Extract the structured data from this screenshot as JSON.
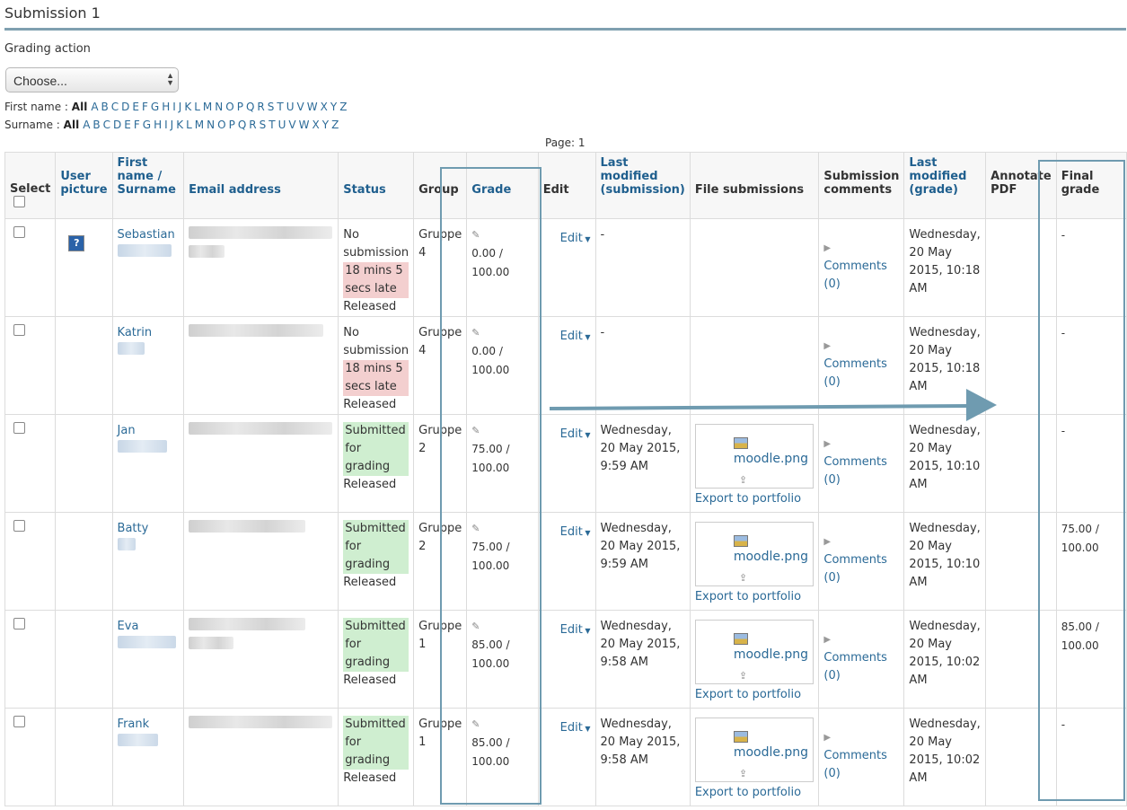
{
  "page": {
    "title": "Submission 1",
    "grading_action_label": "Grading action",
    "grading_action_value": "Choose...",
    "first_name_label": "First name :",
    "surname_label": "Surname :",
    "all_label": "All",
    "letters": [
      "A",
      "B",
      "C",
      "D",
      "E",
      "F",
      "G",
      "H",
      "I",
      "J",
      "K",
      "L",
      "M",
      "N",
      "O",
      "P",
      "Q",
      "R",
      "S",
      "T",
      "U",
      "V",
      "W",
      "X",
      "Y",
      "Z"
    ],
    "page_label": "Page:",
    "page_number": "1"
  },
  "table": {
    "headers": {
      "select": "Select",
      "user_picture": "User picture",
      "name": "First name / Surname",
      "email": "Email address",
      "status": "Status",
      "group": "Group",
      "grade": "Grade",
      "edit": "Edit",
      "last_modified_submission": "Last modified (submission)",
      "file_submissions": "File submissions",
      "submission_comments": "Submission comments",
      "last_modified_grade": "Last modified (grade)",
      "annotate_pdf": "Annotate PDF",
      "final_grade": "Final grade"
    },
    "rows": [
      {
        "first": "Sebastian",
        "status1": "No submission",
        "status_late": "18 mins 5 secs late",
        "status_type": "late",
        "released": "Released",
        "group": "Gruppe 4",
        "grade": "0.00 / 100.00",
        "edit": "Edit",
        "modified_sub": "-",
        "file": "",
        "export": "",
        "comments": "Comments (0)",
        "modified_grade": "Wednesday, 20 May 2015, 10:18 AM",
        "final_grade": "-"
      },
      {
        "first": "Katrin",
        "status1": "No submission",
        "status_late": "18 mins 5 secs late",
        "status_type": "late",
        "released": "Released",
        "group": "Gruppe 4",
        "grade": "0.00 / 100.00",
        "edit": "Edit",
        "modified_sub": "-",
        "file": "",
        "export": "",
        "comments": "Comments (0)",
        "modified_grade": "Wednesday, 20 May 2015, 10:18 AM",
        "final_grade": "-"
      },
      {
        "first": "Jan",
        "status1": "",
        "status_late": "Submitted for grading",
        "status_type": "submitted",
        "released": "Released",
        "group": "Gruppe 2",
        "grade": "75.00 / 100.00",
        "edit": "Edit",
        "modified_sub": "Wednesday, 20 May 2015, 9:59 AM",
        "file": "moodle.png",
        "export": "Export to portfolio",
        "comments": "Comments (0)",
        "modified_grade": "Wednesday, 20 May 2015, 10:10 AM",
        "final_grade": "-"
      },
      {
        "first": "Batty",
        "status1": "",
        "status_late": "Submitted for grading",
        "status_type": "submitted",
        "released": "Released",
        "group": "Gruppe 2",
        "grade": "75.00 / 100.00",
        "edit": "Edit",
        "modified_sub": "Wednesday, 20 May 2015, 9:59 AM",
        "file": "moodle.png",
        "export": "Export to portfolio",
        "comments": "Comments (0)",
        "modified_grade": "Wednesday, 20 May 2015, 10:10 AM",
        "final_grade": "75.00 / 100.00"
      },
      {
        "first": "Eva",
        "status1": "",
        "status_late": "Submitted for grading",
        "status_type": "submitted",
        "released": "Released",
        "group": "Gruppe 1",
        "grade": "85.00 / 100.00",
        "edit": "Edit",
        "modified_sub": "Wednesday, 20 May 2015, 9:58 AM",
        "file": "moodle.png",
        "export": "Export to portfolio",
        "comments": "Comments (0)",
        "modified_grade": "Wednesday, 20 May 2015, 10:02 AM",
        "final_grade": "85.00 / 100.00"
      },
      {
        "first": "Frank",
        "status1": "",
        "status_late": "Submitted for grading",
        "status_type": "submitted",
        "released": "Released",
        "group": "Gruppe 1",
        "grade": "85.00 / 100.00",
        "edit": "Edit",
        "modified_sub": "Wednesday, 20 May 2015, 9:58 AM",
        "file": "moodle.png",
        "export": "Export to portfolio",
        "comments": "Comments (0)",
        "modified_grade": "Wednesday, 20 May 2015, 10:02 AM",
        "final_grade": "-"
      }
    ]
  },
  "colors": {
    "accent": "#6f9bb0",
    "link": "#2b6a97",
    "late_bg": "#f3cfcf",
    "submitted_bg": "#cfeed0"
  }
}
